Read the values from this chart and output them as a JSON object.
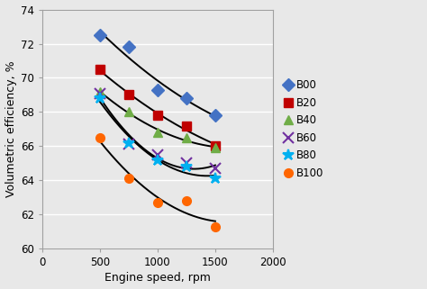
{
  "title": "",
  "xlabel": "Engine speed, rpm",
  "ylabel": "Volumetric efficiency, %",
  "xlim": [
    0,
    2000
  ],
  "ylim": [
    60,
    74
  ],
  "yticks": [
    60,
    62,
    64,
    66,
    68,
    70,
    72,
    74
  ],
  "xticks": [
    0,
    500,
    1000,
    1500,
    2000
  ],
  "series": [
    {
      "label": "B00",
      "color": "#4472C4",
      "marker": "D",
      "markersize": 7,
      "x": [
        500,
        750,
        1000,
        1250,
        1500
      ],
      "y": [
        72.5,
        71.8,
        69.3,
        68.8,
        67.8
      ]
    },
    {
      "label": "B20",
      "color": "#C00000",
      "marker": "s",
      "markersize": 7,
      "x": [
        500,
        750,
        1000,
        1250,
        1500
      ],
      "y": [
        70.5,
        69.0,
        67.8,
        67.2,
        66.0
      ]
    },
    {
      "label": "B40",
      "color": "#70AD47",
      "marker": "^",
      "markersize": 7,
      "x": [
        500,
        750,
        1000,
        1250,
        1500
      ],
      "y": [
        69.2,
        68.0,
        66.8,
        66.5,
        65.9
      ]
    },
    {
      "label": "B60",
      "color": "#7030A0",
      "marker": "x",
      "markersize": 9,
      "x": [
        500,
        750,
        1000,
        1250,
        1500
      ],
      "y": [
        69.1,
        66.1,
        65.5,
        65.0,
        64.7
      ]
    },
    {
      "label": "B80",
      "color": "#00B0F0",
      "marker": "*",
      "markersize": 9,
      "x": [
        500,
        750,
        1000,
        1250,
        1500
      ],
      "y": [
        68.8,
        66.2,
        65.2,
        64.8,
        64.1
      ]
    },
    {
      "label": "B100",
      "color": "#FF6600",
      "marker": "o",
      "markersize": 7,
      "x": [
        500,
        750,
        1000,
        1250,
        1500
      ],
      "y": [
        66.5,
        64.1,
        62.7,
        62.8,
        61.3
      ]
    }
  ],
  "background_color": "#E8E8E8",
  "plot_bg_color": "#E8E8E8",
  "grid_color": "#FFFFFF",
  "figsize": [
    4.74,
    3.21
  ],
  "dpi": 100
}
